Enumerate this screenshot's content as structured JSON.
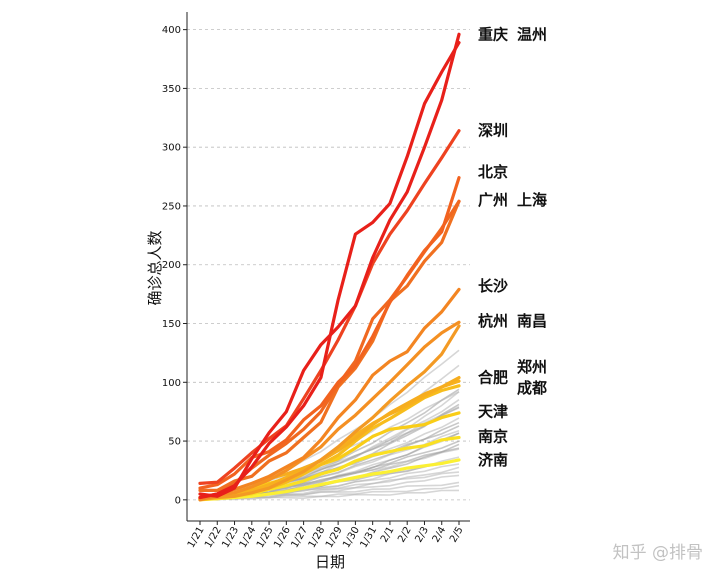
{
  "watermark": "知乎 @排骨",
  "chart_data": {
    "type": "line",
    "title": "",
    "xlabel": "日期",
    "ylabel": "确诊总人数",
    "categories": [
      "1/21",
      "1/22",
      "1/23",
      "1/24",
      "1/25",
      "1/26",
      "1/27",
      "1/28",
      "1/29",
      "1/30",
      "1/31",
      "2/1",
      "2/2",
      "2/3",
      "2/4",
      "2/5"
    ],
    "ylim": [
      -18,
      415
    ],
    "yticks": [
      0,
      50,
      100,
      150,
      200,
      250,
      300,
      350,
      400
    ],
    "grid": "horizontal-dashed",
    "labels": [
      {
        "text": "重庆",
        "y": 396,
        "col": 0
      },
      {
        "text": "温州",
        "y": 396,
        "col": 1
      },
      {
        "text": "深圳",
        "y": 314,
        "col": 0
      },
      {
        "text": "北京",
        "y": 279,
        "col": 0
      },
      {
        "text": "广州",
        "y": 255,
        "col": 0
      },
      {
        "text": "上海",
        "y": 255,
        "col": 1
      },
      {
        "text": "长沙",
        "y": 182,
        "col": 0
      },
      {
        "text": "杭州",
        "y": 152,
        "col": 0
      },
      {
        "text": "南昌",
        "y": 152,
        "col": 1
      },
      {
        "text": "郑州",
        "y": 113,
        "col": 1
      },
      {
        "text": "合肥",
        "y": 104,
        "col": 0
      },
      {
        "text": "成都",
        "y": 95,
        "col": 1
      },
      {
        "text": "天津",
        "y": 75,
        "col": 0
      },
      {
        "text": "南京",
        "y": 54,
        "col": 0
      },
      {
        "text": "济南",
        "y": 34,
        "col": 0
      }
    ],
    "series": [
      {
        "name": "重庆",
        "color": "#e8201a",
        "values": [
          5,
          3,
          10,
          35,
          57,
          75,
          110,
          132,
          147,
          165,
          206,
          238,
          262,
          300,
          340,
          396
        ]
      },
      {
        "name": "温州",
        "color": "#e8201a",
        "values": [
          2,
          5,
          12,
          28,
          48,
          62,
          80,
          104,
          170,
          226,
          236,
          252,
          292,
          337,
          364,
          389
        ]
      },
      {
        "name": "深圳",
        "color": "#ee4220",
        "values": [
          14,
          15,
          27,
          40,
          52,
          63,
          86,
          110,
          136,
          165,
          201,
          226,
          246,
          269,
          291,
          314
        ]
      },
      {
        "name": "北京",
        "color": "#f2621f",
        "values": [
          10,
          13,
          22,
          36,
          41,
          51,
          68,
          80,
          100,
          114,
          139,
          168,
          191,
          212,
          228,
          274
        ]
      },
      {
        "name": "广州",
        "color": "#f06820",
        "values": [
          2,
          5,
          14,
          27,
          38,
          48,
          60,
          75,
          98,
          118,
          154,
          170,
          190,
          211,
          231,
          254
        ]
      },
      {
        "name": "上海",
        "color": "#f07020",
        "values": [
          8,
          8,
          16,
          20,
          33,
          40,
          53,
          66,
          96,
          112,
          135,
          169,
          182,
          203,
          219,
          254
        ]
      },
      {
        "name": "长沙",
        "color": "#f38522",
        "values": [
          0,
          4,
          9,
          14,
          20,
          28,
          36,
          51,
          70,
          85,
          106,
          118,
          126,
          146,
          160,
          179
        ]
      },
      {
        "name": "杭州",
        "color": "#f49023",
        "values": [
          1,
          4,
          6,
          11,
          17,
          25,
          35,
          45,
          60,
          72,
          86,
          100,
          115,
          130,
          142,
          151
        ]
      },
      {
        "name": "南昌",
        "color": "#f39a24",
        "values": [
          1,
          2,
          3,
          6,
          10,
          17,
          24,
          34,
          45,
          58,
          70,
          84,
          97,
          109,
          124,
          148
        ]
      },
      {
        "name": "郑州",
        "color": "#f6ad1f",
        "values": [
          1,
          3,
          6,
          11,
          18,
          22,
          27,
          33,
          42,
          52,
          64,
          74,
          82,
          90,
          96,
          104
        ]
      },
      {
        "name": "合肥",
        "color": "#f8b11d",
        "values": [
          0,
          2,
          5,
          8,
          13,
          19,
          26,
          34,
          44,
          55,
          65,
          73,
          80,
          88,
          96,
          101
        ]
      },
      {
        "name": "成都",
        "color": "#f7bd1c",
        "values": [
          1,
          3,
          5,
          8,
          10,
          15,
          22,
          30,
          38,
          50,
          61,
          69,
          78,
          87,
          93,
          97
        ]
      },
      {
        "name": "天津",
        "color": "#f9cd17",
        "values": [
          2,
          4,
          5,
          10,
          14,
          18,
          24,
          30,
          35,
          44,
          54,
          60,
          62,
          64,
          70,
          74
        ]
      },
      {
        "name": "南京",
        "color": "#fae022",
        "values": [
          0,
          1,
          3,
          5,
          9,
          12,
          16,
          22,
          26,
          33,
          38,
          41,
          44,
          46,
          51,
          53
        ]
      },
      {
        "name": "济南",
        "color": "#fbf033",
        "values": [
          1,
          1,
          2,
          3,
          5,
          7,
          10,
          13,
          16,
          19,
          22,
          24,
          27,
          29,
          31,
          34
        ]
      }
    ],
    "background_series_count": 28
  }
}
